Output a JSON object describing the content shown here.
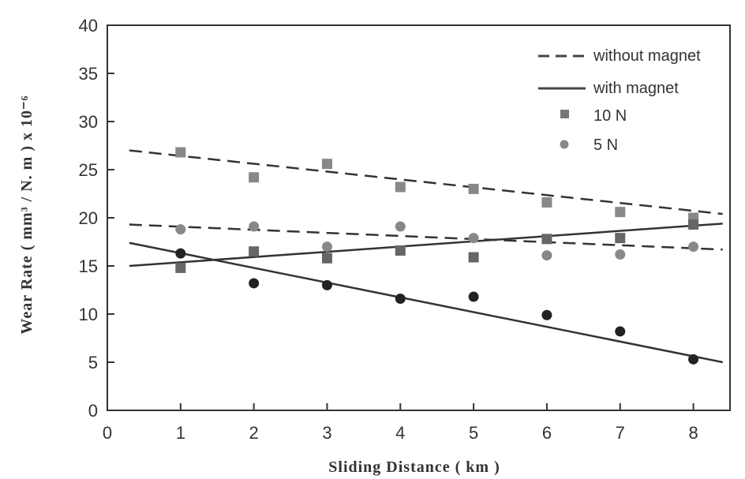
{
  "chart_data": {
    "type": "scatter",
    "xlabel": "Sliding Distance ( km )",
    "ylabel": "Wear Rate ( mm³ / N. m ) x 10⁻⁶",
    "xlim": [
      0,
      8.5
    ],
    "ylim": [
      0,
      40
    ],
    "xticks": [
      "0",
      "1",
      "2",
      "3",
      "4",
      "5",
      "6",
      "7",
      "8"
    ],
    "yticks": [
      "0",
      "5",
      "10",
      "15",
      "20",
      "25",
      "30",
      "35",
      "40"
    ],
    "grid": false,
    "legend_position": "top-right",
    "legend": {
      "line_without": "without magnet",
      "line_with": "with magnet",
      "marker_10n": "10 N",
      "marker_5n": "5 N"
    },
    "series": [
      {
        "load": "10 N",
        "magnet": "without",
        "marker": "square",
        "color": "#888888",
        "x": [
          1,
          2,
          3,
          4,
          5,
          6,
          7,
          8
        ],
        "y": [
          26.8,
          24.2,
          25.6,
          23.2,
          23.0,
          21.6,
          20.6,
          20.0
        ]
      },
      {
        "load": "10 N",
        "magnet": "with",
        "marker": "square",
        "color": "#666666",
        "x": [
          1,
          2,
          3,
          4,
          5,
          6,
          7,
          8
        ],
        "y": [
          14.8,
          16.5,
          15.8,
          16.6,
          15.9,
          17.8,
          17.9,
          19.3
        ]
      },
      {
        "load": "5 N",
        "magnet": "without",
        "marker": "circle",
        "color": "#888888",
        "x": [
          1,
          2,
          3,
          4,
          5,
          6,
          7,
          8
        ],
        "y": [
          18.8,
          19.1,
          17.0,
          19.1,
          17.9,
          16.1,
          16.2,
          17.0
        ]
      },
      {
        "load": "5 N",
        "magnet": "with",
        "marker": "circle",
        "color": "#222222",
        "x": [
          1,
          2,
          3,
          4,
          5,
          6,
          7,
          8
        ],
        "y": [
          16.3,
          13.2,
          13.0,
          11.6,
          11.8,
          9.9,
          8.2,
          5.3
        ]
      }
    ],
    "lines": [
      {
        "style": "dashed",
        "x": [
          0.3,
          8.4
        ],
        "y": [
          27.0,
          20.4
        ]
      },
      {
        "style": "dashed",
        "x": [
          0.3,
          8.4
        ],
        "y": [
          19.3,
          16.7
        ]
      },
      {
        "style": "solid",
        "x": [
          0.3,
          8.4
        ],
        "y": [
          15.0,
          19.4
        ]
      },
      {
        "style": "solid",
        "x": [
          0.3,
          8.4
        ],
        "y": [
          17.4,
          5.0
        ]
      }
    ]
  }
}
